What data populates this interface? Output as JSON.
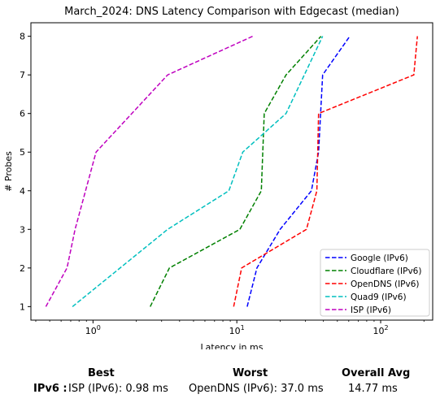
{
  "chart_data": {
    "type": "line",
    "title": "March_2024: DNS Latency Comparison with Edgecast (median)",
    "xlabel": "Latency in ms",
    "ylabel": "# Probes",
    "xscale": "log",
    "xlim": [
      0.37,
      230
    ],
    "ylim": [
      0.65,
      8.35
    ],
    "x_tick_labels": [
      "10^0",
      "10^1",
      "10^2"
    ],
    "y_ticks": [
      1,
      2,
      3,
      4,
      5,
      6,
      7,
      8
    ],
    "legend_position": "lower-right",
    "grid": false,
    "series": [
      {
        "name": "Google (IPv6)",
        "color": "#0000ff",
        "x": [
          11.8,
          13.8,
          20.0,
          33.0,
          37.0,
          39.5,
          61.0
        ],
        "y": [
          1,
          2,
          3,
          4,
          5,
          7,
          8
        ]
      },
      {
        "name": "Cloudflare (IPv6)",
        "color": "#008000",
        "x": [
          2.5,
          3.4,
          10.5,
          14.8,
          15.5,
          22.0,
          38.5
        ],
        "y": [
          1,
          2,
          3,
          4,
          6,
          7,
          8
        ]
      },
      {
        "name": "OpenDNS (IPv6)",
        "color": "#ff0000",
        "x": [
          9.5,
          10.8,
          30.5,
          36.0,
          37.0,
          170.0,
          180.0
        ],
        "y": [
          1,
          2,
          3,
          4,
          6,
          7,
          8
        ]
      },
      {
        "name": "Quad9 (IPv6)",
        "color": "#00bfbf",
        "x": [
          0.72,
          3.3,
          8.8,
          11.0,
          22.0,
          39.5
        ],
        "y": [
          1,
          3,
          4,
          5,
          6,
          8
        ]
      },
      {
        "name": "ISP (IPv6)",
        "color": "#bf00bf",
        "x": [
          0.47,
          0.66,
          0.75,
          1.05,
          3.3,
          12.9
        ],
        "y": [
          1,
          2,
          3,
          5,
          7,
          8
        ]
      }
    ]
  },
  "summary": {
    "best_header": "Best",
    "worst_header": "Worst",
    "avg_header": "Overall Avg",
    "row_label": "IPv6 :",
    "best_value": "ISP (IPv6): 0.98 ms",
    "worst_value": "OpenDNS (IPv6): 37.0 ms",
    "avg_value": "14.77 ms"
  }
}
